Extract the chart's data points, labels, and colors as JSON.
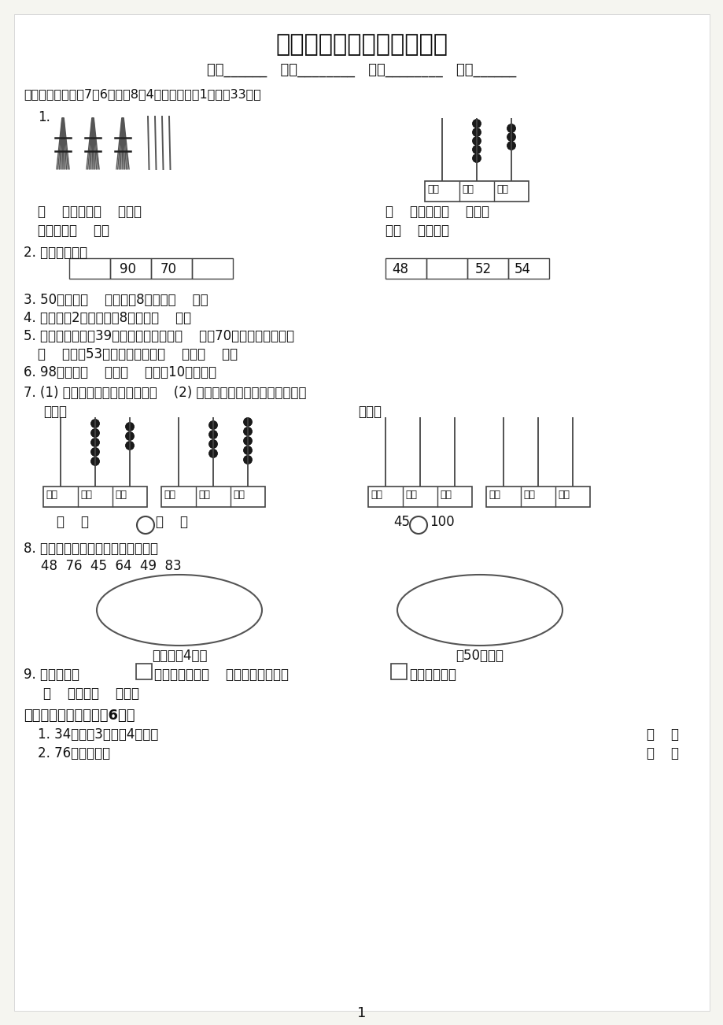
{
  "title": "一年级数学下册期中检测卷",
  "subtitle": "班级______   考号________   姓名________   总分______",
  "sec1": "一、填一填。（第7题6分，第8题4分，其余每空1分，共33分）",
  "q1_left1": "（    ）个十和（    ）个一",
  "q1_left2": "合起来是（    ）。",
  "q1_right1": "（    ）里面有（    ）个十",
  "q1_right2": "和（    ）个一。",
  "q2": "2. 按规律填数。",
  "t1_vals": [
    "",
    "90",
    "70",
    ""
  ],
  "t2_vals": [
    "48",
    "",
    "52",
    "54"
  ],
  "q3": "3. 50里面有（    ）个十；8个十是（    ）。",
  "q4": "4. 个位上是2，十位上是8的数是（    ）。",
  "q5a": "5. 一个一个地数，39前面的第二个数是（    ），70后面的第二个数是",
  "q5b": "（    ），和53相邻的两个数是（    ）和（    ）。",
  "q6": "6. 98再加上（    ）个（    ）就是10个十了。",
  "q7": "7. (1) 先根据计数器写数，再比较    (2) 先在计数器上画出珠子，再比较",
  "q7sub1": "大小。",
  "q7sub2": "大小。",
  "q8": "8. 选择合适的数填在相应的圆圈里。",
  "q8nums": "48  76  45  64  49  83",
  "q8label1": "十位上是4的数",
  "q8label2": "比50大的数",
  "q9a": "9. 两个同样的",
  "q9b": "可以拼成一个（    ）形，四个同样的",
  "q9c": "可以拼成一个",
  "q9d": "（    ）形或（    ）形。",
  "sec2": "二、我是小法官。（共6分）",
  "j1": "1. 34里面有3个一和4个十。",
  "j2": "2. 76读作七六。",
  "paren": "（    ）",
  "page": "1",
  "bg": "#ffffff"
}
